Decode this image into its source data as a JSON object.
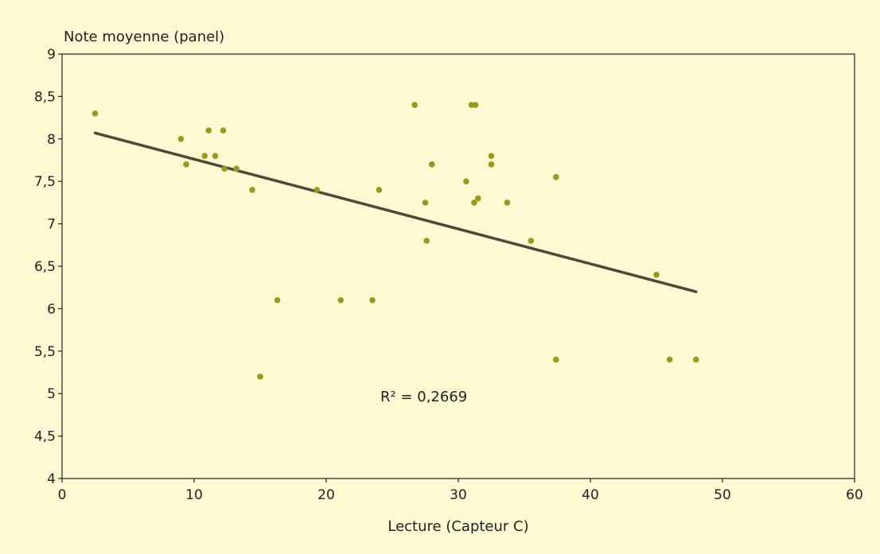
{
  "chart_data": {
    "type": "scatter",
    "title": "",
    "xlabel": "Lecture (Capteur C)",
    "ylabel": "Note moyenne (panel)",
    "xlim": [
      0,
      60
    ],
    "ylim": [
      4,
      9
    ],
    "x_ticks": [
      0,
      10,
      20,
      30,
      40,
      50,
      60
    ],
    "x_tick_labels": [
      "0",
      "10",
      "20",
      "30",
      "40",
      "50",
      "60"
    ],
    "y_ticks": [
      4,
      4.5,
      5,
      5.5,
      6,
      6.5,
      7,
      7.5,
      8,
      8.5,
      9
    ],
    "y_tick_labels": [
      "4",
      "4,5",
      "5",
      "5,5",
      "6",
      "6,5",
      "7",
      "7,5",
      "8",
      "8,5",
      "9"
    ],
    "grid": false,
    "legend": "none",
    "marker_color": "#9a9a1a",
    "trendline_color": "#4a4a38",
    "background_color": "#fdf9d3",
    "annotation": "R² = 0,2669",
    "trendline": {
      "x": [
        2.5,
        48
      ],
      "y": [
        8.07,
        6.2
      ]
    },
    "points": [
      {
        "x": 2.5,
        "y": 8.3
      },
      {
        "x": 9,
        "y": 8.0
      },
      {
        "x": 9.4,
        "y": 7.7
      },
      {
        "x": 10.8,
        "y": 7.8
      },
      {
        "x": 11.1,
        "y": 8.1
      },
      {
        "x": 11.6,
        "y": 7.8
      },
      {
        "x": 12.2,
        "y": 8.1
      },
      {
        "x": 12.3,
        "y": 7.65
      },
      {
        "x": 13.2,
        "y": 7.65
      },
      {
        "x": 14.4,
        "y": 7.4
      },
      {
        "x": 15.0,
        "y": 5.2
      },
      {
        "x": 16.3,
        "y": 6.1
      },
      {
        "x": 19.3,
        "y": 7.4
      },
      {
        "x": 21.1,
        "y": 6.1
      },
      {
        "x": 23.5,
        "y": 6.1
      },
      {
        "x": 24.0,
        "y": 7.4
      },
      {
        "x": 26.7,
        "y": 8.4
      },
      {
        "x": 27.5,
        "y": 7.25
      },
      {
        "x": 27.6,
        "y": 6.8
      },
      {
        "x": 28.0,
        "y": 7.7
      },
      {
        "x": 30.6,
        "y": 7.5
      },
      {
        "x": 31.0,
        "y": 8.4
      },
      {
        "x": 31.3,
        "y": 8.4
      },
      {
        "x": 31.2,
        "y": 7.25
      },
      {
        "x": 31.5,
        "y": 7.3
      },
      {
        "x": 32.5,
        "y": 7.8
      },
      {
        "x": 32.5,
        "y": 7.7
      },
      {
        "x": 33.7,
        "y": 7.25
      },
      {
        "x": 35.5,
        "y": 6.8
      },
      {
        "x": 37.4,
        "y": 7.55
      },
      {
        "x": 37.4,
        "y": 5.4
      },
      {
        "x": 45.0,
        "y": 6.4
      },
      {
        "x": 46.0,
        "y": 5.4
      },
      {
        "x": 48.0,
        "y": 5.4
      }
    ]
  }
}
